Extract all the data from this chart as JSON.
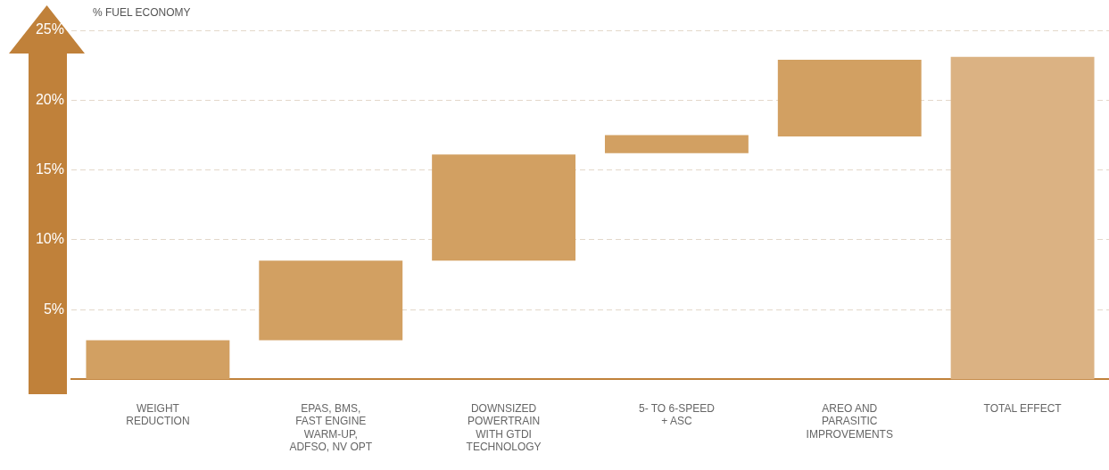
{
  "chart_data": {
    "type": "bar",
    "ylabel": "% FUEL ECONOMY",
    "categories": [
      "WEIGHT REDUCTION",
      "EPAS, BMS, FAST ENGINE WARM-UP, ADFSO, NV OPT",
      "DOWNSIZED POWERTRAIN WITH GTDI TECHNOLOGY",
      "5- TO 6-SPEED + ASC",
      "AREO AND PARASITIC IMPROVEMENTS",
      "TOTAL EFFECT"
    ],
    "values": [
      2.8,
      5.7,
      7.6,
      1.3,
      5.5,
      23.1
    ],
    "base": [
      0,
      2.8,
      8.5,
      16.2,
      17.4,
      0
    ],
    "colors": [
      "#d2a062",
      "#d2a062",
      "#d2a062",
      "#d2a062",
      "#d2a062",
      "#dbb283"
    ],
    "ylim": [
      0,
      25
    ],
    "yticks": [
      {
        "value": 5,
        "label": "5%"
      },
      {
        "value": 10,
        "label": "10%"
      },
      {
        "value": 15,
        "label": "15%"
      },
      {
        "value": 20,
        "label": "20%"
      },
      {
        "value": 25,
        "label": "25%"
      }
    ],
    "grid": "y"
  }
}
